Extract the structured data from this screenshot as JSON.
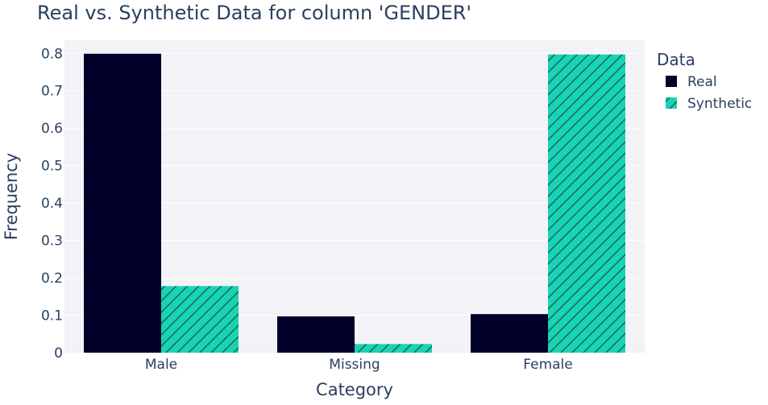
{
  "chart_data": {
    "type": "bar",
    "title": "Real vs. Synthetic Data for column 'GENDER'",
    "xlabel": "Category",
    "ylabel": "Frequency",
    "categories": [
      "Male",
      "Missing",
      "Female"
    ],
    "series": [
      {
        "name": "Real",
        "values": [
          0.799,
          0.097,
          0.103
        ],
        "color": "#01002a",
        "pattern": "solid"
      },
      {
        "name": "Synthetic",
        "values": [
          0.178,
          0.023,
          0.797
        ],
        "color": "#17d5b4",
        "pattern": "diagonal-hatch"
      }
    ],
    "ylim": [
      0,
      0.835
    ],
    "yticks": [
      0,
      0.1,
      0.2,
      0.3,
      0.4,
      0.5,
      0.6,
      0.7,
      0.8
    ],
    "ytick_labels": [
      "0",
      "0.1",
      "0.2",
      "0.3",
      "0.4",
      "0.5",
      "0.6",
      "0.7",
      "0.8"
    ],
    "grid": true,
    "legend": {
      "title": "Data",
      "placement": "right"
    },
    "plot_background": "#f2f2f7"
  }
}
